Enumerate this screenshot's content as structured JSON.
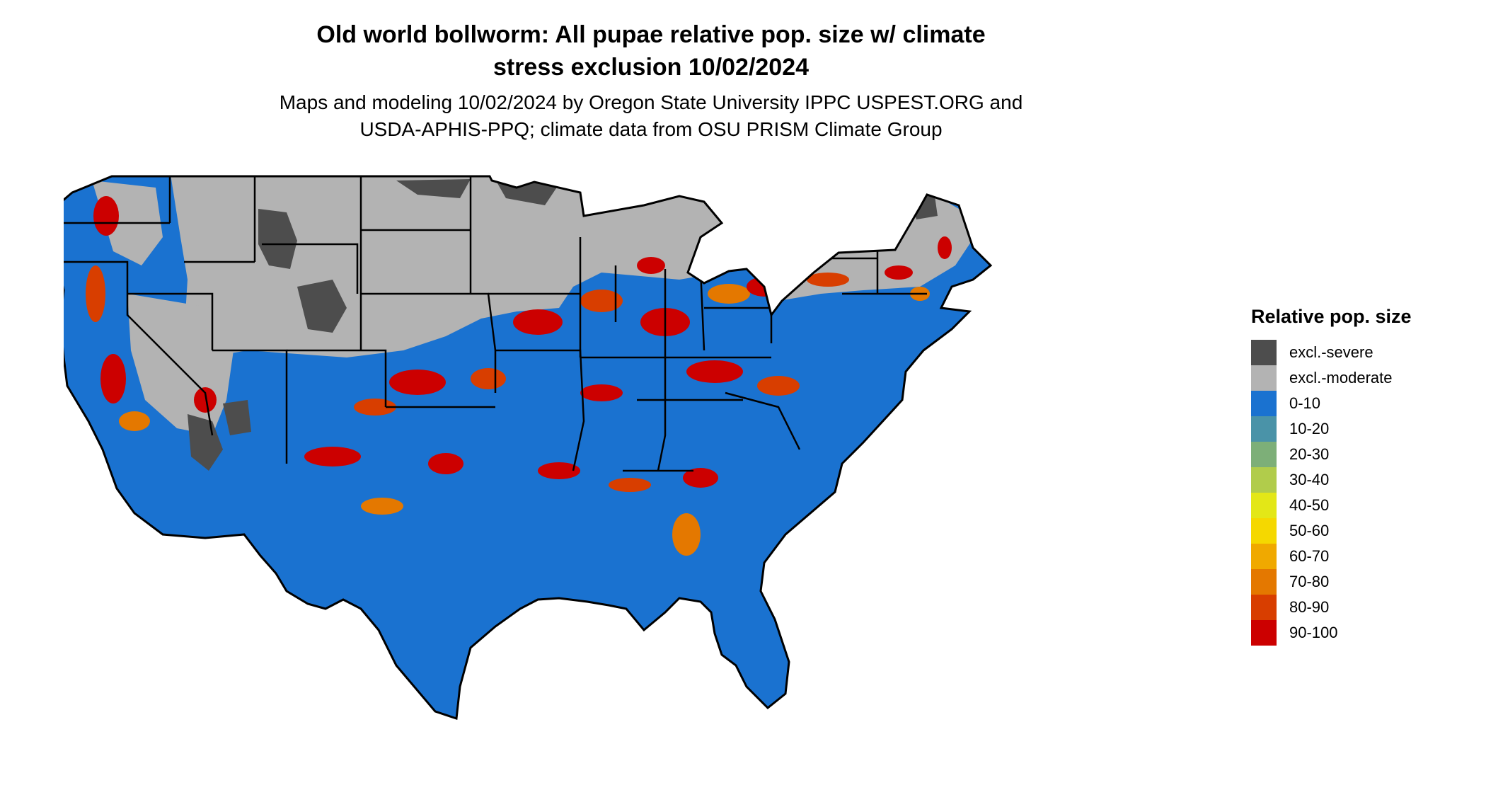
{
  "header": {
    "title_line1": "Old world bollworm: All pupae relative pop. size w/ climate",
    "title_line2": "stress exclusion 10/02/2024",
    "subtitle_line1": "Maps and modeling 10/02/2024 by Oregon State University IPPC USPEST.ORG and",
    "subtitle_line2": "USDA-APHIS-PPQ; climate data from OSU PRISM Climate Group"
  },
  "legend": {
    "title": "Relative pop. size",
    "items": [
      {
        "label": "excl.-severe",
        "color": "#4d4d4d"
      },
      {
        "label": "excl.-moderate",
        "color": "#b3b3b3"
      },
      {
        "label": "0-10",
        "color": "#1a72d0"
      },
      {
        "label": "10-20",
        "color": "#4a93a8"
      },
      {
        "label": "20-30",
        "color": "#7daf78"
      },
      {
        "label": "30-40",
        "color": "#b1cc4b"
      },
      {
        "label": "40-50",
        "color": "#e3e717"
      },
      {
        "label": "50-60",
        "color": "#f5d800"
      },
      {
        "label": "60-70",
        "color": "#f0a900"
      },
      {
        "label": "70-80",
        "color": "#e47800"
      },
      {
        "label": "80-90",
        "color": "#d83e00"
      },
      {
        "label": "90-100",
        "color": "#cc0000"
      }
    ]
  }
}
